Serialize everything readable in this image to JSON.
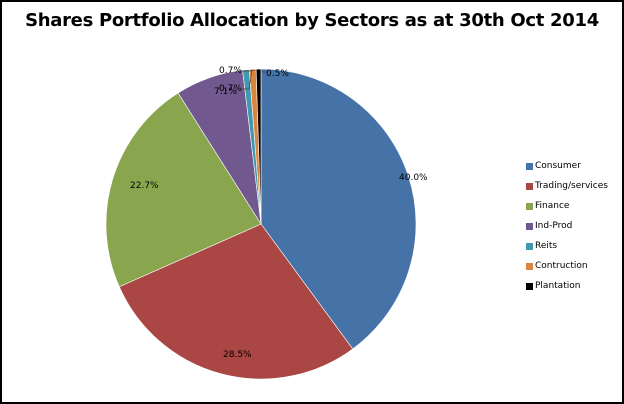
{
  "chart_data": {
    "type": "pie",
    "title": "Shares Portfolio Allocation by Sectors as at 30th Oct 2014",
    "categories": [
      "Consumer",
      "Trading/services",
      "Finance",
      "Ind-Prod",
      "Reits",
      "Contruction",
      "Plantation"
    ],
    "values": [
      40.0,
      28.5,
      22.7,
      7.1,
      0.7,
      0.7,
      0.5
    ],
    "labels": [
      "40.0%",
      "28.5%",
      "22.7%",
      "7.1%",
      "0.7%",
      "0.7%",
      "0.5%"
    ],
    "colors": [
      "#4572A7",
      "#AA4643",
      "#89A54E",
      "#71588F",
      "#4198AF",
      "#DB843D",
      "#000000"
    ],
    "start_angle": "12 o'clock",
    "direction": "clockwise",
    "legend_position": "right"
  },
  "legend": [
    {
      "label": "Consumer",
      "color": "#4572A7"
    },
    {
      "label": "Trading/services",
      "color": "#AA4643"
    },
    {
      "label": "Finance",
      "color": "#89A54E"
    },
    {
      "label": "Ind-Prod",
      "color": "#71588F"
    },
    {
      "label": "Reits",
      "color": "#4198AF"
    },
    {
      "label": "Contruction",
      "color": "#DB843D"
    },
    {
      "label": "Plantation",
      "color": "#000000"
    }
  ]
}
